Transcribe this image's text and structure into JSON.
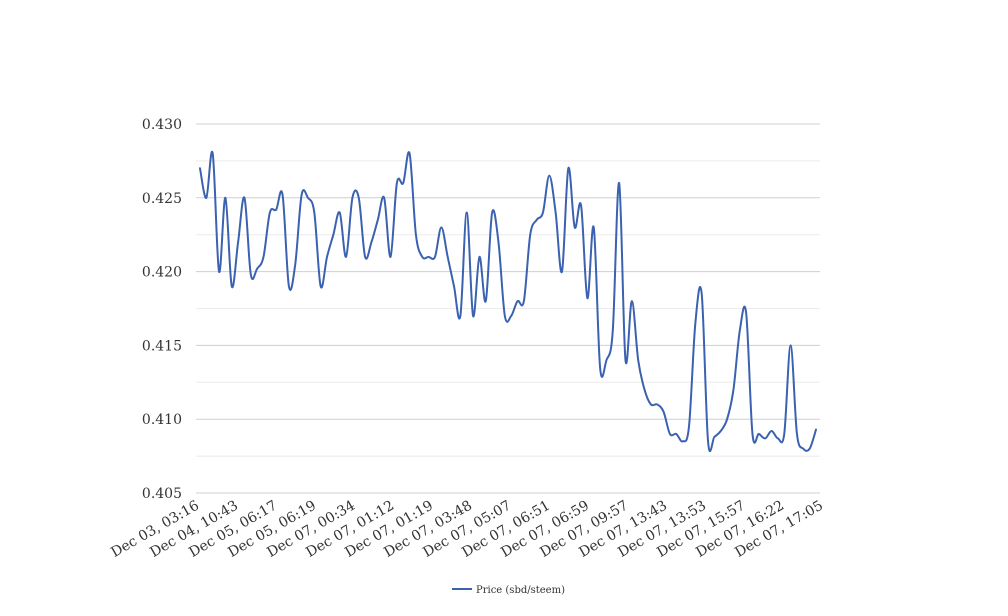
{
  "chart_data": {
    "type": "line",
    "ylim": [
      0.405,
      0.43
    ],
    "y_ticks": [
      "0.430",
      "0.425",
      "0.420",
      "0.415",
      "0.410",
      "0.405"
    ],
    "y_tick_values": [
      0.43,
      0.425,
      0.42,
      0.415,
      0.41,
      0.405
    ],
    "x_tick_labels": [
      "Dec 03, 03:16",
      "Dec 04, 10:43",
      "Dec 05, 06:17",
      "Dec 05, 06:19",
      "Dec 07, 00:34",
      "Dec 07, 01:12",
      "Dec 07, 01:19",
      "Dec 07, 03:48",
      "Dec 07, 05:07",
      "Dec 07, 06:51",
      "Dec 07, 06:59",
      "Dec 07, 09:57",
      "Dec 07, 13:43",
      "Dec 07, 13:53",
      "Dec 07, 15:57",
      "Dec 07, 16:22",
      "Dec 07, 17:05"
    ],
    "grid": true,
    "legend_position": "bottom",
    "series": [
      {
        "name": "Price (sbd/steem)",
        "color": "#3a62b0",
        "values": [
          0.427,
          0.425,
          0.428,
          0.42,
          0.425,
          0.419,
          0.422,
          0.425,
          0.4198,
          0.4202,
          0.421,
          0.424,
          0.4242,
          0.4252,
          0.419,
          0.4205,
          0.4252,
          0.425,
          0.424,
          0.419,
          0.421,
          0.4225,
          0.424,
          0.421,
          0.425,
          0.425,
          0.421,
          0.422,
          0.4235,
          0.425,
          0.421,
          0.426,
          0.426,
          0.428,
          0.4225,
          0.421,
          0.421,
          0.421,
          0.423,
          0.421,
          0.419,
          0.417,
          0.424,
          0.417,
          0.421,
          0.418,
          0.424,
          0.422,
          0.417,
          0.417,
          0.418,
          0.418,
          0.4225,
          0.4235,
          0.424,
          0.4265,
          0.424,
          0.42,
          0.427,
          0.423,
          0.4245,
          0.4182,
          0.423,
          0.4135,
          0.414,
          0.416,
          0.426,
          0.414,
          0.418,
          0.414,
          0.412,
          0.411,
          0.411,
          0.4105,
          0.409,
          0.409,
          0.4085,
          0.4095,
          0.4165,
          0.4185,
          0.4085,
          0.4088,
          0.4092,
          0.41,
          0.412,
          0.416,
          0.4172,
          0.409,
          0.409,
          0.4087,
          0.4092,
          0.4087,
          0.409,
          0.415,
          0.409,
          0.408,
          0.408,
          0.4093
        ]
      }
    ]
  }
}
